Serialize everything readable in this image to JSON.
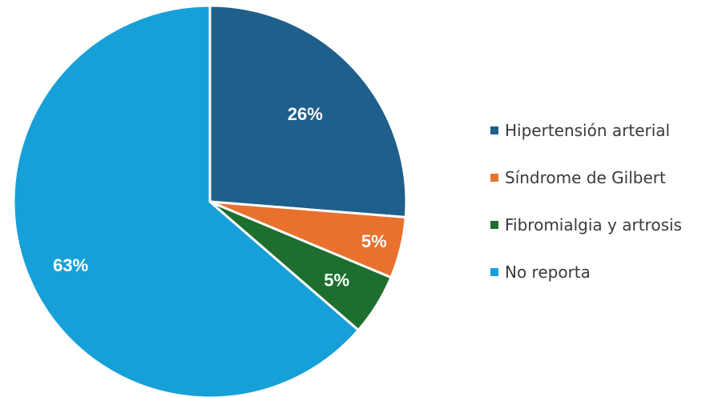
{
  "chart_data": {
    "type": "pie",
    "title": "",
    "start_angle_deg": 0,
    "direction": "clockwise",
    "legend_position": "right",
    "slices": [
      {
        "name": "Hipertensión arterial",
        "value": 26,
        "label": "26%",
        "color": "#1f5f8b"
      },
      {
        "name": "Síndrome de Gilbert",
        "value": 5,
        "label": "5%",
        "color": "#e8712e"
      },
      {
        "name": "Fibromialgia y artrosis",
        "value": 5,
        "label": "5%",
        "color": "#1e6e2f"
      },
      {
        "name": "No reporta",
        "value": 63,
        "label": "63%",
        "color": "#17a0d8"
      }
    ]
  }
}
